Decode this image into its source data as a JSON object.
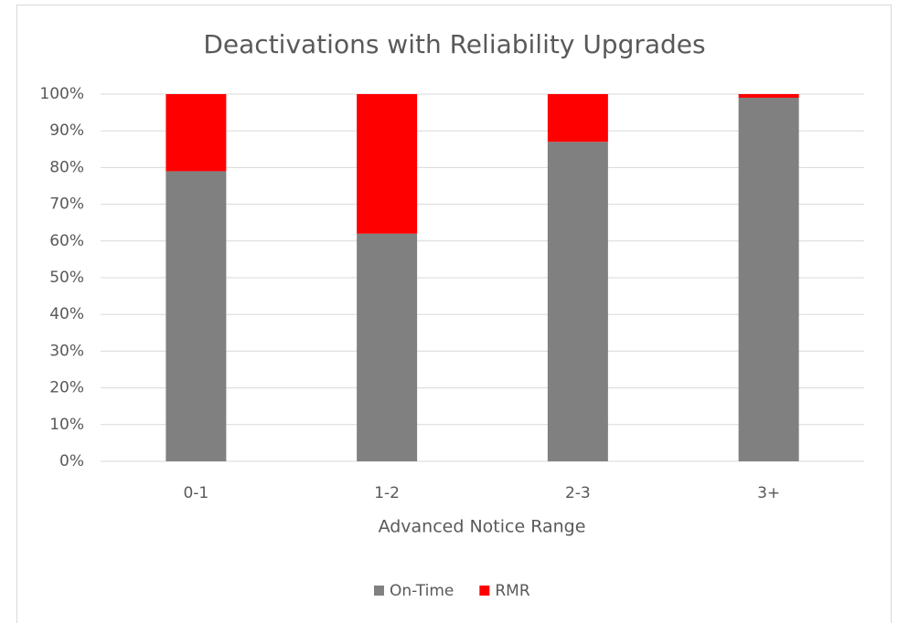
{
  "chart_data": {
    "type": "stacked_bar",
    "title": "Deactivations with Reliability Upgrades",
    "x_label": "Advanced Notice Range",
    "categories": [
      "0-1",
      "1-2",
      "2-3",
      "3+"
    ],
    "series": [
      {
        "name": "On-Time",
        "color": "#808080",
        "values": [
          79,
          62,
          87,
          99
        ]
      },
      {
        "name": "RMR",
        "color": "#ff0000",
        "values": [
          21,
          38,
          13,
          1
        ]
      }
    ],
    "ylim": [
      0,
      100
    ],
    "yticks": [
      {
        "value": 0,
        "label": "0%"
      },
      {
        "value": 10,
        "label": "10%"
      },
      {
        "value": 20,
        "label": "20%"
      },
      {
        "value": 30,
        "label": "30%"
      },
      {
        "value": 40,
        "label": "40%"
      },
      {
        "value": 50,
        "label": "50%"
      },
      {
        "value": 60,
        "label": "60%"
      },
      {
        "value": 70,
        "label": "70%"
      },
      {
        "value": 80,
        "label": "80%"
      },
      {
        "value": 90,
        "label": "90%"
      },
      {
        "value": 100,
        "label": "100%"
      }
    ],
    "grid": true,
    "legend": "bottom"
  }
}
